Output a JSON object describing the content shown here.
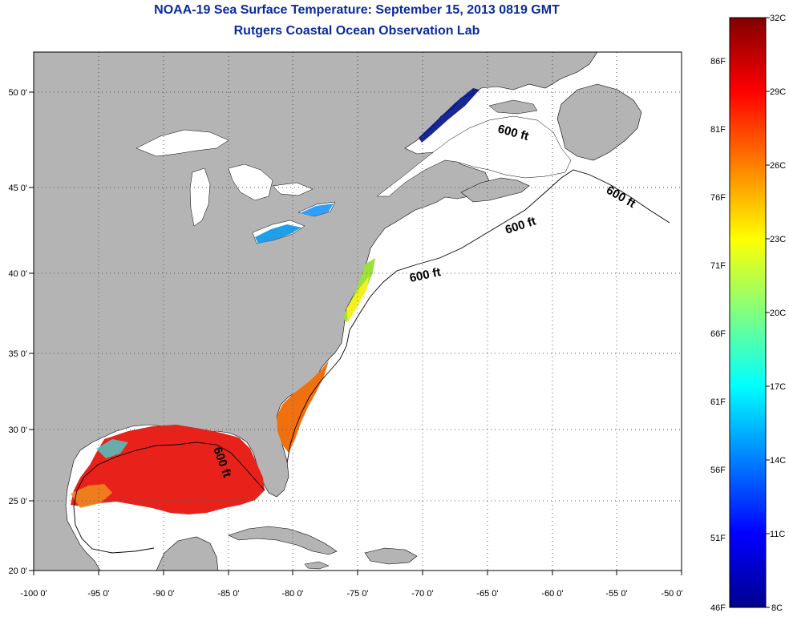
{
  "title": "NOAA-19 Sea Surface Temperature:  September 15, 2013 0819 GMT",
  "subtitle": "Rutgers Coastal Ocean Observation Lab",
  "map": {
    "lon_range": [
      -100,
      -50
    ],
    "lat_range": [
      20,
      52.5
    ],
    "lon_ticks": [
      "-100 0'",
      "-95 0'",
      "-90 0'",
      "-85 0'",
      "-80 0'",
      "-75 0'",
      "-70 0'",
      "-65 0'",
      "-60 0'",
      "-55 0'",
      "-50 0'"
    ],
    "lat_ticks": [
      "20 0'",
      "25 0'",
      "30 0'",
      "35 0'",
      "40 0'",
      "45 0'",
      "50 0'"
    ],
    "grid": "dotted",
    "land_color": "#b4b4b4",
    "ocean_color": "#ffffff",
    "contour_labels": [
      "600 ft",
      "600 ft",
      "600 ft",
      "600 ft",
      "600 ft"
    ]
  },
  "colorbar": {
    "min_c": 8,
    "max_c": 32,
    "celsius_labels": [
      "32C",
      "29C",
      "26C",
      "23C",
      "20C",
      "17C",
      "14C",
      "11C",
      "8C"
    ],
    "fahrenheit_labels": [
      "86F",
      "81F",
      "76F",
      "71F",
      "66F",
      "61F",
      "56F",
      "51F",
      "46F"
    ],
    "colormap": "jet"
  }
}
